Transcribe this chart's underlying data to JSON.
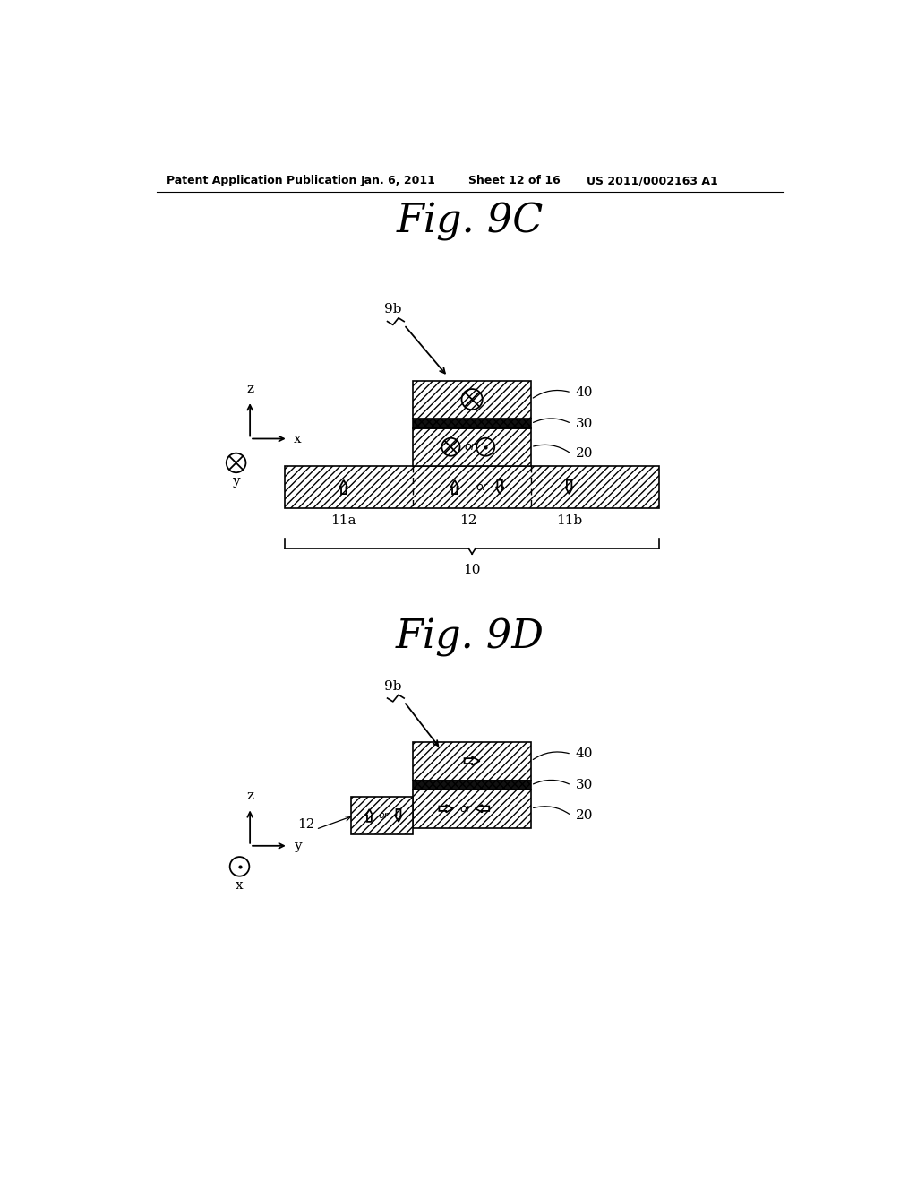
{
  "bg_color": "#ffffff",
  "header_text": "Patent Application Publication",
  "header_date": "Jan. 6, 2011",
  "header_sheet": "Sheet 12 of 16",
  "header_patent": "US 2011/0002163 A1",
  "fig9c_title": "Fig. 9C",
  "fig9d_title": "Fig. 9D"
}
